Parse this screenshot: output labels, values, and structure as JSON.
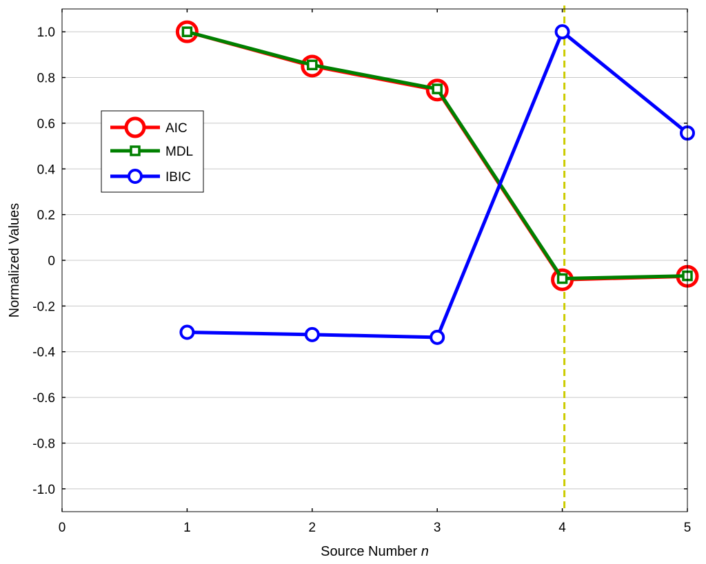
{
  "chart_data": {
    "type": "line",
    "title": "",
    "xlabel": "Source Number",
    "xlabel_italic_suffix": "n",
    "ylabel": "Normalized Values",
    "xlim": [
      0,
      5
    ],
    "ylim": [
      -1.1,
      1.1
    ],
    "xticks": [
      0,
      1,
      2,
      3,
      4,
      5
    ],
    "xtick_labels": [
      "0",
      "1",
      "2",
      "3",
      "4",
      "5"
    ],
    "yticks": [
      1.0,
      0.8,
      0.6,
      0.4,
      0.2,
      0,
      -0.2,
      -0.4,
      -0.6,
      -0.8,
      -1.0
    ],
    "ytick_labels": [
      "1.0",
      "0.8",
      "0.6",
      "0.4",
      "0.2",
      "0",
      "-0.2",
      "-0.4",
      "-0.6",
      "-0.8",
      "-1.0"
    ],
    "grid": true,
    "legend_position": "left",
    "x": [
      1,
      2,
      3,
      4,
      5
    ],
    "series": [
      {
        "name": "AIC",
        "color": "#ff0000",
        "marker": "circle",
        "values": [
          1.0,
          0.85,
          0.745,
          -0.085,
          -0.07
        ]
      },
      {
        "name": "MDL",
        "color": "#008000",
        "marker": "square",
        "values": [
          1.0,
          0.855,
          0.75,
          -0.08,
          -0.068
        ]
      },
      {
        "name": "IBIC",
        "color": "#0000ff",
        "marker": "circle",
        "values": [
          -0.315,
          -0.325,
          -0.337,
          1.0,
          0.557
        ]
      }
    ],
    "reference_line": {
      "x": 4,
      "color": "#cccc00",
      "style": "dashed"
    }
  }
}
